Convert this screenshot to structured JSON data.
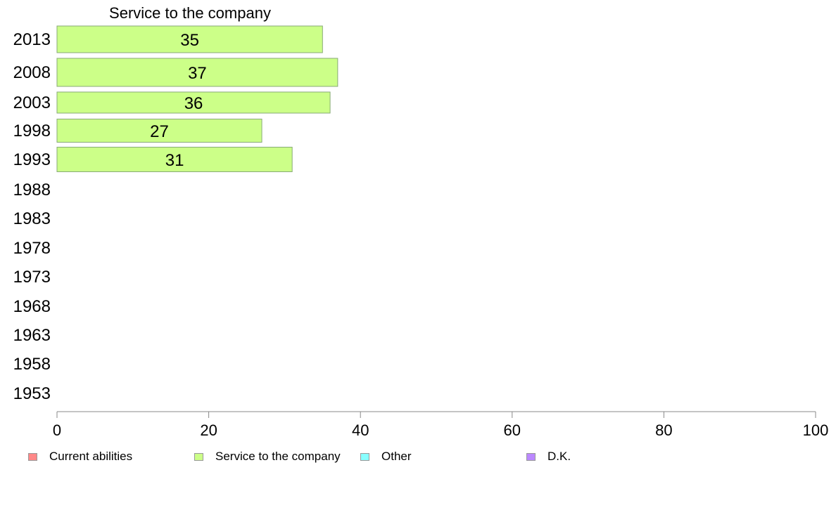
{
  "chart_data": {
    "type": "bar",
    "orientation": "horizontal",
    "title": "Service to the company",
    "categories": [
      "2013",
      "2008",
      "2003",
      "1998",
      "1993",
      "1988",
      "1983",
      "1978",
      "1973",
      "1968",
      "1963",
      "1958",
      "1953"
    ],
    "series": [
      {
        "name": "Service to the company",
        "values": [
          35,
          37,
          36,
          27,
          31,
          null,
          null,
          null,
          null,
          null,
          null,
          null,
          null
        ],
        "color": "#ccff88"
      }
    ],
    "data_labels": [
      "35",
      "37",
      "36",
      "27",
      "31",
      "",
      "",
      "",
      "",
      "",
      "",
      "",
      ""
    ],
    "xlim": [
      0,
      100
    ],
    "xticks": [
      "0",
      "20",
      "40",
      "60",
      "80",
      "100"
    ],
    "grid": false,
    "legend_position": "bottom"
  },
  "legend": [
    {
      "label": "Current abilities",
      "color": "#ff8888"
    },
    {
      "label": "Service to the company",
      "color": "#ccff88"
    },
    {
      "label": "Other",
      "color": "#88ffff"
    },
    {
      "label": "D.K.",
      "color": "#bb88ff"
    }
  ]
}
